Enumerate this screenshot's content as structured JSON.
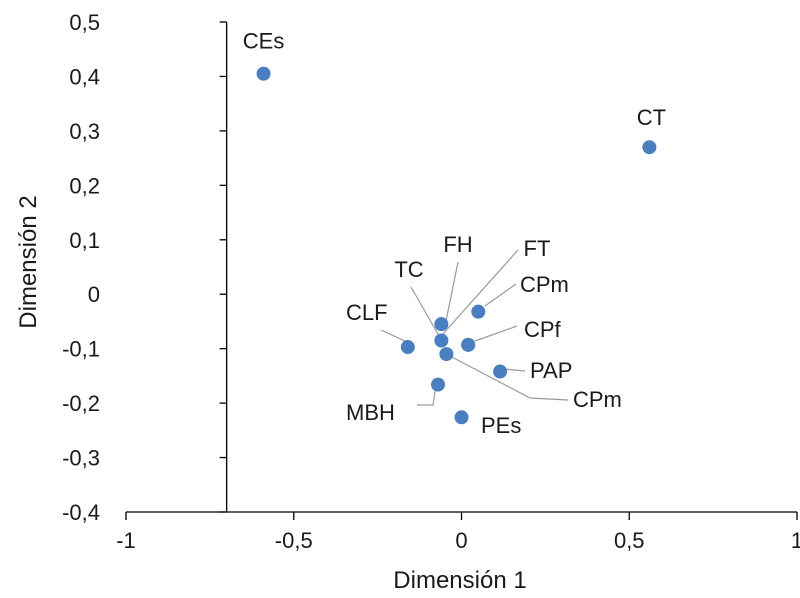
{
  "chart_data": {
    "type": "scatter",
    "title": "",
    "xlabel": "Dimensión 1",
    "ylabel": "Dimensión 2",
    "xlim": [
      -1,
      1
    ],
    "ylim": [
      -0.4,
      0.5
    ],
    "x_ticks": [
      {
        "value": -1,
        "label": "-1"
      },
      {
        "value": -0.5,
        "label": "-0,5"
      },
      {
        "value": 0,
        "label": "0"
      },
      {
        "value": 0.5,
        "label": "0,5"
      },
      {
        "value": 1,
        "label": "1"
      }
    ],
    "y_ticks": [
      {
        "value": 0.5,
        "label": "0,5"
      },
      {
        "value": 0.4,
        "label": "0,4"
      },
      {
        "value": 0.3,
        "label": "0,3"
      },
      {
        "value": 0.2,
        "label": "0,2"
      },
      {
        "value": 0.1,
        "label": "0,1"
      },
      {
        "value": 0,
        "label": "0"
      },
      {
        "value": -0.1,
        "label": "-0,1"
      },
      {
        "value": -0.2,
        "label": "-0,2"
      },
      {
        "value": -0.3,
        "label": "-0,3"
      },
      {
        "value": -0.4,
        "label": "-0,4"
      }
    ],
    "y_axis_at_x": -0.7,
    "grid": false,
    "marker_color": "#4a7ec2",
    "leader_color": "#9a9a9a",
    "points": [
      {
        "label": "CEs",
        "x": -0.59,
        "y": 0.405
      },
      {
        "label": "CT",
        "x": 0.56,
        "y": 0.27
      },
      {
        "label": "CPm",
        "x": 0.05,
        "y": -0.032
      },
      {
        "label": "FH",
        "x": -0.06,
        "y": -0.055
      },
      {
        "label": "TC",
        "x": -0.06,
        "y": -0.085
      },
      {
        "label": "FT",
        "x": 0.02,
        "y": -0.093
      },
      {
        "label": "CPf",
        "x": 0.02,
        "y": -0.093
      },
      {
        "label": "CLF",
        "x": -0.16,
        "y": -0.097
      },
      {
        "label": "CPm",
        "x": -0.045,
        "y": -0.11
      },
      {
        "label": "PAP",
        "x": 0.115,
        "y": -0.142
      },
      {
        "label": "MBH",
        "x": -0.07,
        "y": -0.166
      },
      {
        "label": "PEs",
        "x": 0.0,
        "y": -0.226
      }
    ]
  }
}
